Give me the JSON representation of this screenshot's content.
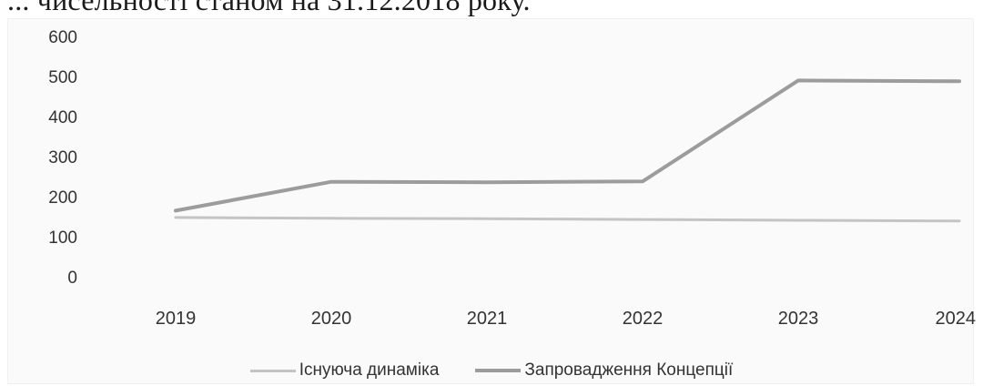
{
  "caption": "... чисельності станом на 31.12.2018 року.",
  "colors": {
    "series_1": "#c4c4c4",
    "series_2": "#9c9c9c",
    "text": "#333333"
  },
  "chart_data": {
    "type": "line",
    "x": [
      "2019",
      "2020",
      "2021",
      "2022",
      "2023",
      "2024"
    ],
    "y_ticks": [
      "0",
      "100",
      "200",
      "300",
      "400",
      "500",
      "600"
    ],
    "ylim": [
      0,
      600
    ],
    "grid": false,
    "legend_position": "bottom",
    "series": [
      {
        "name": "Існуюча динаміка",
        "values": [
          148,
          146,
          145,
          143,
          141,
          139
        ]
      },
      {
        "name": "Запровадження Концепції",
        "values": [
          165,
          237,
          236,
          238,
          490,
          488
        ]
      }
    ]
  }
}
